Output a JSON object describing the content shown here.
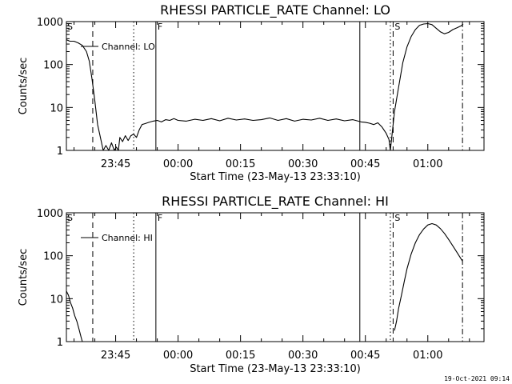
{
  "stamp": "19-Oct-2021 09:14",
  "chart_data": [
    {
      "type": "line",
      "title": "RHESSI PARTICLE_RATE Channel: LO",
      "xlabel": "Start Time (23-May-13 23:33:10)",
      "ylabel": "Counts/sec",
      "y_scale": "log",
      "ylim": [
        1,
        1000
      ],
      "xlim": [
        "23:33:10",
        "01:13:30"
      ],
      "x_ticks": [
        "23:45",
        "00:00",
        "00:15",
        "00:30",
        "00:45",
        "01:00"
      ],
      "y_ticks": [
        "1",
        "10",
        "100",
        "1000"
      ],
      "legend": {
        "entry": "Channel: LO",
        "placement": "top-left"
      },
      "markers": [
        {
          "time": "23:39:30",
          "style": "dashed",
          "letter": ""
        },
        {
          "time": "23:49:20",
          "style": "dotted",
          "letter": ""
        },
        {
          "time": "23:54:40",
          "style": "solid",
          "letter": "F"
        },
        {
          "time": "00:43:40",
          "style": "solid",
          "letter": ""
        },
        {
          "time": "00:51:00",
          "style": "dotted",
          "letter": ""
        },
        {
          "time": "00:51:40",
          "style": "dashed",
          "letter": "S"
        },
        {
          "time": "01:08:20",
          "style": "dashdot",
          "letter": ""
        }
      ],
      "corner_letter": "S",
      "series": [
        {
          "x": [
            "23:33:10",
            "23:34:00",
            "23:35:00",
            "23:36:00",
            "23:37:00",
            "23:38:00",
            "23:38:40",
            "23:39:20",
            "23:40:00",
            "23:40:40",
            "23:41:20",
            "23:42:00",
            "23:42:40",
            "23:43:20",
            "23:44:00",
            "23:44:40",
            "23:45:10",
            "23:45:40",
            "23:46:00",
            "23:46:40",
            "23:47:20",
            "23:48:00",
            "23:48:40",
            "23:49:20",
            "23:50:00",
            "23:50:40",
            "23:51:20",
            "23:52:00",
            "23:53:00",
            "23:54:00",
            "23:55:00",
            "23:56:00",
            "23:57:00",
            "23:58:00",
            "23:59:00",
            "00:00:00",
            "00:02:00",
            "00:04:00",
            "00:06:00",
            "00:08:00",
            "00:10:00",
            "00:12:00",
            "00:14:00",
            "00:16:00",
            "00:18:00",
            "00:20:00",
            "00:22:00",
            "00:24:00",
            "00:26:00",
            "00:28:00",
            "00:30:00",
            "00:32:00",
            "00:34:00",
            "00:36:00",
            "00:38:00",
            "00:40:00",
            "00:42:00",
            "00:44:00",
            "00:45:00",
            "00:46:00",
            "00:47:00",
            "00:48:00",
            "00:49:00",
            "00:50:00",
            "00:50:40",
            "00:51:00",
            "00:51:20",
            "00:51:40",
            "00:52:00",
            "00:53:00",
            "00:54:00",
            "00:55:00",
            "00:56:00",
            "00:57:00",
            "00:58:00",
            "00:59:00",
            "01:00:00",
            "01:01:00",
            "01:02:00",
            "01:03:00",
            "01:04:00",
            "01:05:00",
            "01:06:00",
            "01:07:00",
            "01:08:00",
            "01:08:30"
          ],
          "y": [
            380,
            350,
            350,
            320,
            280,
            200,
            120,
            45,
            14,
            4,
            2,
            1,
            1.3,
            1,
            1.5,
            1,
            1.2,
            1,
            2,
            1.6,
            2.2,
            1.7,
            2.2,
            2.4,
            2,
            3,
            4,
            4.2,
            4.5,
            4.8,
            5,
            4.6,
            5.2,
            5,
            5.5,
            5,
            4.8,
            5.3,
            5,
            5.5,
            4.9,
            5.6,
            5.1,
            5.4,
            5,
            5.2,
            5.7,
            5,
            5.5,
            4.8,
            5.3,
            5.1,
            5.6,
            5,
            5.4,
            4.9,
            5.2,
            4.6,
            4.5,
            4.3,
            4,
            4.4,
            3.5,
            2.5,
            1.8,
            1,
            2,
            4,
            8,
            30,
            110,
            260,
            450,
            650,
            820,
            880,
            900,
            850,
            700,
            580,
            520,
            560,
            650,
            720,
            800,
            870
          ]
        }
      ]
    },
    {
      "type": "line",
      "title": "RHESSI PARTICLE_RATE Channel: HI",
      "xlabel": "Start Time (23-May-13 23:33:10)",
      "ylabel": "Counts/sec",
      "y_scale": "log",
      "ylim": [
        1,
        1000
      ],
      "xlim": [
        "23:33:10",
        "01:13:30"
      ],
      "x_ticks": [
        "23:45",
        "00:00",
        "00:15",
        "00:30",
        "00:45",
        "01:00"
      ],
      "y_ticks": [
        "1",
        "10",
        "100",
        "1000"
      ],
      "legend": {
        "entry": "Channel: HI",
        "placement": "top-left"
      },
      "markers": [
        {
          "time": "23:39:30",
          "style": "dashed",
          "letter": ""
        },
        {
          "time": "23:49:20",
          "style": "dotted",
          "letter": ""
        },
        {
          "time": "23:54:40",
          "style": "solid",
          "letter": "F"
        },
        {
          "time": "00:43:40",
          "style": "solid",
          "letter": ""
        },
        {
          "time": "00:51:00",
          "style": "dotted",
          "letter": ""
        },
        {
          "time": "00:51:40",
          "style": "dashed",
          "letter": "S"
        },
        {
          "time": "01:08:20",
          "style": "dashdot",
          "letter": ""
        }
      ],
      "corner_letter": "S",
      "series": [
        {
          "x": [
            "23:33:10",
            "23:33:40",
            "23:34:10",
            "23:34:40",
            "23:35:10",
            "23:35:40",
            "23:36:10",
            "23:36:40",
            "23:37:00"
          ],
          "y": [
            15,
            12,
            8,
            6,
            4,
            3,
            2,
            1.3,
            1
          ]
        },
        {
          "x": [
            "00:52:00",
            "00:52:30",
            "00:53:00",
            "00:53:40",
            "00:54:20",
            "00:55:00",
            "00:56:00",
            "00:57:00",
            "00:58:00",
            "00:59:00",
            "01:00:00",
            "01:01:00",
            "01:02:00",
            "01:03:00",
            "01:04:00",
            "01:05:00",
            "01:06:00",
            "01:07:00",
            "01:08:20"
          ],
          "y": [
            1.8,
            3,
            6,
            12,
            25,
            50,
            110,
            200,
            310,
            420,
            520,
            560,
            520,
            430,
            330,
            240,
            170,
            120,
            75
          ]
        }
      ]
    }
  ]
}
